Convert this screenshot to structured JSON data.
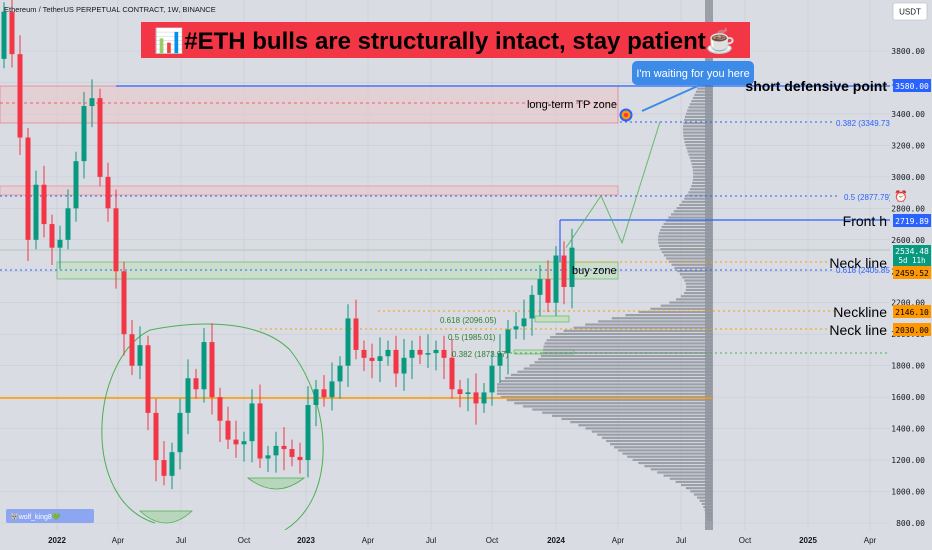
{
  "header": {
    "symbol_line": "Ethereum / TetherUS PERPETUAL CONTRACT, 1W, BINANCE",
    "currency_button": "USDT"
  },
  "banner": {
    "text": "📊#ETH bulls are structurally intact, stay patient☕",
    "bg": "#f23645",
    "fg": "#000000"
  },
  "callout": {
    "text": "I'm waiting for you here",
    "bg": "#3d8be8"
  },
  "annotations": {
    "tp_zone": "long-term TP zone",
    "buy_zone": "buy zone",
    "short_point": "short defensive point",
    "front_h": "Front h",
    "neck_line_1": "Neck line",
    "neckline": "Neckline",
    "neck_line_2": "Neck line",
    "fib_0382_top": "0.382 (3349.73)",
    "fib_05_top": "0.5 (2877.79)",
    "fib_0618_top": "0.618 (2405.85)",
    "fib_0618_low": "0.618 (2096.05)",
    "fib_05_low": "0.5 (1985.01)",
    "fib_0382_low": "0.382 (1873.97)",
    "watermark": "🐺wolf_king8💚"
  },
  "price_tags": {
    "p3580": "3580.00",
    "p2719": "2719.89",
    "p2534": "2534.48",
    "countdown": "5d 11h",
    "p2459": "2459.52",
    "p2146": "2146.10",
    "p2030": "2030.00"
  },
  "colors": {
    "bg": "#d9dce3",
    "up": "#089981",
    "down": "#f23645",
    "blue": "#2962ff",
    "orange": "#ff9800",
    "green_line": "#4caf50",
    "volume": "#8f949e"
  },
  "chart_data": {
    "type": "candlestick",
    "title": "Ethereum / TetherUS PERPETUAL CONTRACT, 1W, BINANCE",
    "y_ticks": [
      800,
      1000,
      1200,
      1400,
      1600,
      1800,
      2000,
      2200,
      2400,
      2600,
      2800,
      3000,
      3200,
      3400,
      3600,
      3800
    ],
    "x_ticks": [
      "2022",
      "Apr",
      "Jul",
      "Oct",
      "2023",
      "Apr",
      "Jul",
      "Oct",
      "2024",
      "Apr",
      "Jul",
      "Oct",
      "2025",
      "Apr"
    ],
    "ylim": [
      760,
      4060
    ],
    "series": [
      {
        "name": "ETHUSDT weekly close (approx.)",
        "values": [
          4050,
          3780,
          3250,
          2600,
          2950,
          2700,
          2550,
          2600,
          2800,
          3100,
          3450,
          3500,
          3000,
          2800,
          2400,
          2000,
          1800,
          1930,
          1500,
          1200,
          1100,
          1250,
          1500,
          1720,
          1650,
          1950,
          1600,
          1450,
          1330,
          1300,
          1320,
          1560,
          1210,
          1230,
          1290,
          1270,
          1220,
          1200,
          1550,
          1650,
          1600,
          1700,
          1800,
          2100,
          1900,
          1850,
          1830,
          1860,
          1900,
          1750,
          1850,
          1900,
          1870,
          1880,
          1900,
          1850,
          1650,
          1620,
          1630,
          1560,
          1630,
          1800,
          1880,
          2030,
          2050,
          2100,
          2250,
          2350,
          2200,
          2500,
          2300,
          2550
        ]
      },
      {
        "name": "Front path projection",
        "values": [
          2550,
          2880,
          2580,
          3350
        ]
      }
    ],
    "levels": [
      {
        "label": "short defensive point",
        "value": 3580.0
      },
      {
        "label": "0.382",
        "value": 3349.73
      },
      {
        "label": "0.5",
        "value": 2877.79
      },
      {
        "label": "Front h",
        "value": 2719.89
      },
      {
        "label": "0.618",
        "value": 2405.85
      },
      {
        "label": "Neck line",
        "value": 2459.52
      },
      {
        "label": "Neckline",
        "value": 2146.1
      },
      {
        "label": "0.618",
        "value": 2096.05
      },
      {
        "label": "Neck line",
        "value": 2030.0
      },
      {
        "label": "0.5",
        "value": 1985.01
      },
      {
        "label": "0.382",
        "value": 1873.97
      }
    ],
    "zones": [
      {
        "label": "long-term TP zone",
        "range": [
          3360,
          3580
        ]
      },
      {
        "label": "buy zone",
        "range": [
          2340,
          2460
        ]
      }
    ],
    "grid": true,
    "legend": "none"
  }
}
